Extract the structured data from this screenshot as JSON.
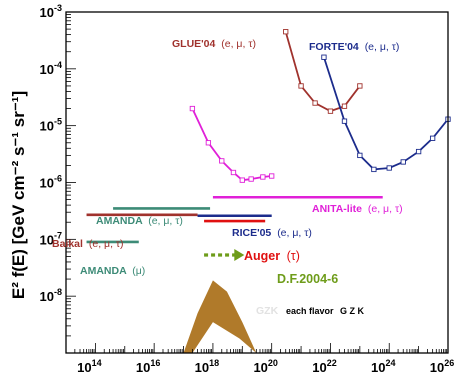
{
  "chart_data": {
    "type": "line",
    "title": "",
    "xlabel": "",
    "ylabel": "E² f(E) [GeV cm⁻² s⁻¹ sr⁻¹]",
    "x_scale": "log",
    "y_scale": "log",
    "xlim": [
      10000000000000.0,
      1e+26
    ],
    "ylim": [
      1e-09,
      0.001
    ],
    "x_tick_labels": [
      {
        "value": 100000000000000.0,
        "base": "10",
        "exp": "14"
      },
      {
        "value": 1e+16,
        "base": "10",
        "exp": "16"
      },
      {
        "value": 1e+18,
        "base": "10",
        "exp": "18"
      },
      {
        "value": 1e+20,
        "base": "10",
        "exp": "20"
      },
      {
        "value": 1e+22,
        "base": "10",
        "exp": "22"
      },
      {
        "value": 1e+24,
        "base": "10",
        "exp": "24"
      },
      {
        "value": 1e+26,
        "base": "10",
        "exp": "26"
      }
    ],
    "y_tick_labels": [
      {
        "value": 1e-08,
        "base": "10",
        "exp": "-8"
      },
      {
        "value": 1e-07,
        "base": "10",
        "exp": "-7"
      },
      {
        "value": 1e-06,
        "base": "10",
        "exp": "-6"
      },
      {
        "value": 1e-05,
        "base": "10",
        "exp": "-5"
      },
      {
        "value": 0.0001,
        "base": "10",
        "exp": "-4"
      },
      {
        "value": 0.001,
        "base": "10",
        "exp": "-3"
      }
    ],
    "curves": [
      {
        "name": "GLUE'04 (e, μ, τ)",
        "color": "#a0322d",
        "x": [
          3e+20,
          1e+21,
          3e+21,
          1e+22,
          3e+22,
          1e+23
        ],
        "y": [
          0.00045,
          5e-05,
          2.5e-05,
          1.8e-05,
          2.2e-05,
          5e-05
        ]
      },
      {
        "name": "FORTE'04 (e, μ, τ)",
        "color": "#1c2c8c",
        "x": [
          6e+21,
          3e+22,
          1e+23,
          3e+23,
          1e+24,
          3e+24,
          1e+25,
          3e+25,
          1e+26
        ],
        "y": [
          0.00016,
          1.2e-05,
          3e-06,
          1.7e-06,
          1.8e-06,
          2.3e-06,
          3.5e-06,
          6e-06,
          1.3e-05
        ]
      },
      {
        "name": "RICE'05 (e, μ, τ)",
        "color": "#e020d8",
        "x": [
          2e+17,
          7e+17,
          2e+18,
          5e+18,
          1e+19,
          2e+19,
          5e+19,
          1e+20
        ],
        "y": [
          2e-05,
          5e-06,
          2.4e-06,
          1.5e-06,
          1.1e-06,
          1.15e-06,
          1.25e-06,
          1.3e-06
        ]
      }
    ],
    "limits": [
      {
        "name": "AMANDA (e, μ, τ)",
        "color": "#3d8b77",
        "x": [
          400000000000000.0,
          8e+17
        ],
        "y": 3.5e-07
      },
      {
        "name": "Baikal (e, μ, τ)",
        "color": "#a0322d",
        "x": [
          50000000000000.0,
          3e+17
        ],
        "y": 2.7e-07
      },
      {
        "name": "AMANDA (μ)",
        "color": "#3d8b77",
        "x": [
          50000000000000.0,
          3000000000000000.0
        ],
        "y": 9e-08
      },
      {
        "name": "ANITA-lite (e, μ, τ)",
        "color": "#e020d8",
        "x": [
          1e+18,
          6e+23
        ],
        "y": 5.5e-07
      },
      {
        "name": "RICE'05 (e, μ, τ)",
        "color": "#1c2c8c",
        "x": [
          3e+17,
          1e+20
        ],
        "y": 2.6e-07
      },
      {
        "name": "Auger (τ)",
        "color": "#e01010",
        "x": [
          5e+17,
          6e+19
        ],
        "y": 2.1e-07
      }
    ],
    "projection": {
      "name": "D.F.2004-6",
      "color": "#6e9c1a",
      "x": [
        5e+17,
        1e+19
      ],
      "y": 5.3e-08
    },
    "band": {
      "name": "GZK",
      "color": "#b07a2a",
      "upper_x": [
        1e+17,
        3e+17,
        1e+18,
        3e+18,
        1e+19,
        3e+19
      ],
      "upper_y": [
        1e-09,
        5e-09,
        1.9e-08,
        1.2e-08,
        3.5e-09,
        1e-09
      ],
      "lower_x": [
        3e+19,
        8e+18,
        1e+18,
        2e+17
      ],
      "lower_y": [
        1e-09,
        1.8e-09,
        3.5e-09,
        1e-09
      ]
    },
    "grid": false,
    "legend": "none"
  },
  "labels": {
    "glue": "GLUE'04",
    "glue_flavors": "(e, μ, τ)",
    "forte": "FORTE'04",
    "forte_flavors": "(e, μ, τ)",
    "anita": "ANITA-lite",
    "anita_flavors": "(e, μ, τ)",
    "amanda_all": "AMANDA",
    "amanda_all_flavors": "(e, μ, τ)",
    "baikal": "Baikal",
    "baikal_flavors": "(e, μ, τ)",
    "rice": "RICE'05",
    "rice_flavors": "(e, μ, τ)",
    "auger": "Auger",
    "auger_flavor": "(τ)",
    "amanda_mu": "AMANDA",
    "amanda_mu_flavor": "(μ)",
    "df": "D.F.2004-6",
    "gzk_ghost": "GZK",
    "each_flavor": "each flavor",
    "gzk": "G Z K"
  },
  "colors": {
    "glue": "#a0322d",
    "forte": "#1c2c8c",
    "rice": "#e020d8",
    "anita": "#e020d8",
    "amanda": "#3d8b77",
    "baikal": "#a0322d",
    "auger": "#e01010",
    "df": "#6e9c1a",
    "gzk": "#b07a2a"
  }
}
